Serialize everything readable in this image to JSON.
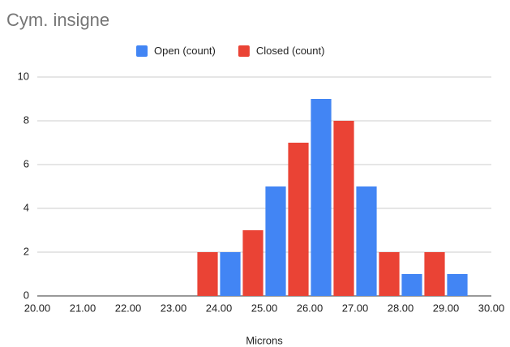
{
  "chart_data": {
    "type": "bar",
    "title": "Cym. insigne",
    "x_label": "Microns",
    "x": [
      24,
      25,
      26,
      27,
      28,
      29
    ],
    "series": [
      {
        "name": "Open (count)",
        "color": "#4285f4",
        "values": [
          2,
          5,
          9,
          5,
          1,
          1
        ]
      },
      {
        "name": "Closed (count)",
        "color": "#ea4335",
        "values": [
          2,
          3,
          7,
          8,
          2,
          2
        ]
      }
    ],
    "xlim": [
      20,
      30
    ],
    "xticks": [
      {
        "value": 20,
        "label": "20.00"
      },
      {
        "value": 21,
        "label": "21.00"
      },
      {
        "value": 22,
        "label": "22.00"
      },
      {
        "value": 23,
        "label": "23.00"
      },
      {
        "value": 24,
        "label": "24.00"
      },
      {
        "value": 25,
        "label": "25.00"
      },
      {
        "value": 26,
        "label": "26.00"
      },
      {
        "value": 27,
        "label": "27.00"
      },
      {
        "value": 28,
        "label": "28.00"
      },
      {
        "value": 29,
        "label": "29.00"
      },
      {
        "value": 30,
        "label": "30.00"
      }
    ],
    "ylim": [
      0,
      10
    ],
    "yticks": [
      0,
      2,
      4,
      6,
      8,
      10
    ],
    "grid": true,
    "legend": "top"
  }
}
